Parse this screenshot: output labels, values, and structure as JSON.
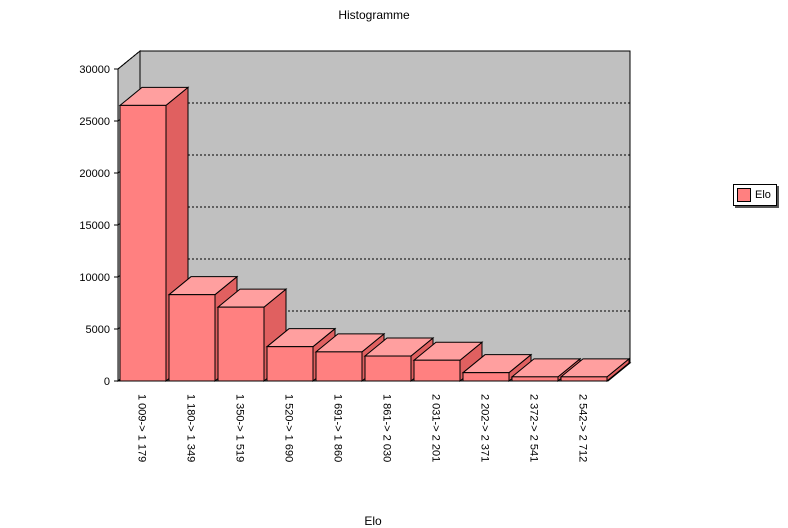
{
  "colors": {
    "bar_front": "#ff8080",
    "bar_top": "#ff9f9f",
    "bar_side": "#e06060",
    "wall": "#c0c0c0",
    "floor": "#9a9a9a"
  },
  "chart_data": {
    "type": "bar",
    "title": "Histogramme",
    "xlabel": "Elo",
    "ylabel": "",
    "ylim": [
      0,
      30000
    ],
    "yticks": [
      "0",
      "5000",
      "10000",
      "15000",
      "20000",
      "25000",
      "30000"
    ],
    "grid": true,
    "legend_position": "right",
    "categories": [
      "1 009-> 1 179",
      "1 180-> 1 349",
      "1 350-> 1 519",
      "1 520-> 1 690",
      "1 691-> 1 860",
      "1 861-> 2 030",
      "2 031-> 2 201",
      "2 202-> 2 371",
      "2 372-> 2 541",
      "2 542-> 2 712"
    ],
    "series": [
      {
        "name": "Elo",
        "values": [
          26500,
          8300,
          7100,
          3300,
          2800,
          2400,
          2000,
          800,
          400,
          400
        ]
      }
    ]
  }
}
